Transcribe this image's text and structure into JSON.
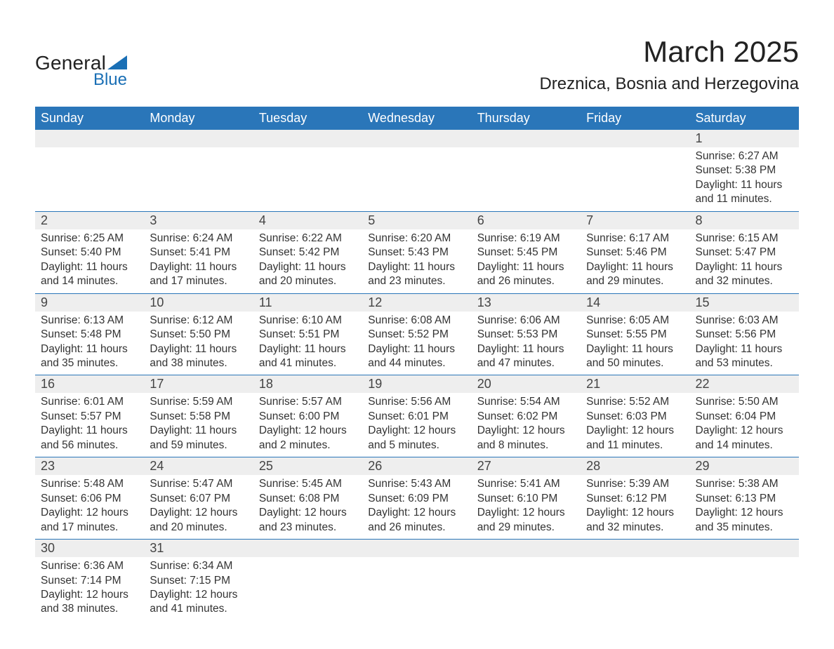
{
  "logo": {
    "text_general": "General",
    "text_blue": "Blue",
    "flag_color": "#1a6fb5"
  },
  "title": "March 2025",
  "location": "Dreznica, Bosnia and Herzegovina",
  "colors": {
    "header_bg": "#2a76b9",
    "header_text": "#ffffff",
    "daynum_bg": "#eeeeee",
    "row_border": "#2a76b9",
    "body_text": "#333333",
    "page_bg": "#ffffff"
  },
  "typography": {
    "title_fontsize": 42,
    "location_fontsize": 24,
    "header_fontsize": 18,
    "daynum_fontsize": 18,
    "detail_fontsize": 15.5,
    "font_family": "Arial"
  },
  "weekdays": [
    "Sunday",
    "Monday",
    "Tuesday",
    "Wednesday",
    "Thursday",
    "Friday",
    "Saturday"
  ],
  "weeks": [
    [
      null,
      null,
      null,
      null,
      null,
      null,
      {
        "n": "1",
        "sunrise": "Sunrise: 6:27 AM",
        "sunset": "Sunset: 5:38 PM",
        "day1": "Daylight: 11 hours",
        "day2": "and 11 minutes."
      }
    ],
    [
      {
        "n": "2",
        "sunrise": "Sunrise: 6:25 AM",
        "sunset": "Sunset: 5:40 PM",
        "day1": "Daylight: 11 hours",
        "day2": "and 14 minutes."
      },
      {
        "n": "3",
        "sunrise": "Sunrise: 6:24 AM",
        "sunset": "Sunset: 5:41 PM",
        "day1": "Daylight: 11 hours",
        "day2": "and 17 minutes."
      },
      {
        "n": "4",
        "sunrise": "Sunrise: 6:22 AM",
        "sunset": "Sunset: 5:42 PM",
        "day1": "Daylight: 11 hours",
        "day2": "and 20 minutes."
      },
      {
        "n": "5",
        "sunrise": "Sunrise: 6:20 AM",
        "sunset": "Sunset: 5:43 PM",
        "day1": "Daylight: 11 hours",
        "day2": "and 23 minutes."
      },
      {
        "n": "6",
        "sunrise": "Sunrise: 6:19 AM",
        "sunset": "Sunset: 5:45 PM",
        "day1": "Daylight: 11 hours",
        "day2": "and 26 minutes."
      },
      {
        "n": "7",
        "sunrise": "Sunrise: 6:17 AM",
        "sunset": "Sunset: 5:46 PM",
        "day1": "Daylight: 11 hours",
        "day2": "and 29 minutes."
      },
      {
        "n": "8",
        "sunrise": "Sunrise: 6:15 AM",
        "sunset": "Sunset: 5:47 PM",
        "day1": "Daylight: 11 hours",
        "day2": "and 32 minutes."
      }
    ],
    [
      {
        "n": "9",
        "sunrise": "Sunrise: 6:13 AM",
        "sunset": "Sunset: 5:48 PM",
        "day1": "Daylight: 11 hours",
        "day2": "and 35 minutes."
      },
      {
        "n": "10",
        "sunrise": "Sunrise: 6:12 AM",
        "sunset": "Sunset: 5:50 PM",
        "day1": "Daylight: 11 hours",
        "day2": "and 38 minutes."
      },
      {
        "n": "11",
        "sunrise": "Sunrise: 6:10 AM",
        "sunset": "Sunset: 5:51 PM",
        "day1": "Daylight: 11 hours",
        "day2": "and 41 minutes."
      },
      {
        "n": "12",
        "sunrise": "Sunrise: 6:08 AM",
        "sunset": "Sunset: 5:52 PM",
        "day1": "Daylight: 11 hours",
        "day2": "and 44 minutes."
      },
      {
        "n": "13",
        "sunrise": "Sunrise: 6:06 AM",
        "sunset": "Sunset: 5:53 PM",
        "day1": "Daylight: 11 hours",
        "day2": "and 47 minutes."
      },
      {
        "n": "14",
        "sunrise": "Sunrise: 6:05 AM",
        "sunset": "Sunset: 5:55 PM",
        "day1": "Daylight: 11 hours",
        "day2": "and 50 minutes."
      },
      {
        "n": "15",
        "sunrise": "Sunrise: 6:03 AM",
        "sunset": "Sunset: 5:56 PM",
        "day1": "Daylight: 11 hours",
        "day2": "and 53 minutes."
      }
    ],
    [
      {
        "n": "16",
        "sunrise": "Sunrise: 6:01 AM",
        "sunset": "Sunset: 5:57 PM",
        "day1": "Daylight: 11 hours",
        "day2": "and 56 minutes."
      },
      {
        "n": "17",
        "sunrise": "Sunrise: 5:59 AM",
        "sunset": "Sunset: 5:58 PM",
        "day1": "Daylight: 11 hours",
        "day2": "and 59 minutes."
      },
      {
        "n": "18",
        "sunrise": "Sunrise: 5:57 AM",
        "sunset": "Sunset: 6:00 PM",
        "day1": "Daylight: 12 hours",
        "day2": "and 2 minutes."
      },
      {
        "n": "19",
        "sunrise": "Sunrise: 5:56 AM",
        "sunset": "Sunset: 6:01 PM",
        "day1": "Daylight: 12 hours",
        "day2": "and 5 minutes."
      },
      {
        "n": "20",
        "sunrise": "Sunrise: 5:54 AM",
        "sunset": "Sunset: 6:02 PM",
        "day1": "Daylight: 12 hours",
        "day2": "and 8 minutes."
      },
      {
        "n": "21",
        "sunrise": "Sunrise: 5:52 AM",
        "sunset": "Sunset: 6:03 PM",
        "day1": "Daylight: 12 hours",
        "day2": "and 11 minutes."
      },
      {
        "n": "22",
        "sunrise": "Sunrise: 5:50 AM",
        "sunset": "Sunset: 6:04 PM",
        "day1": "Daylight: 12 hours",
        "day2": "and 14 minutes."
      }
    ],
    [
      {
        "n": "23",
        "sunrise": "Sunrise: 5:48 AM",
        "sunset": "Sunset: 6:06 PM",
        "day1": "Daylight: 12 hours",
        "day2": "and 17 minutes."
      },
      {
        "n": "24",
        "sunrise": "Sunrise: 5:47 AM",
        "sunset": "Sunset: 6:07 PM",
        "day1": "Daylight: 12 hours",
        "day2": "and 20 minutes."
      },
      {
        "n": "25",
        "sunrise": "Sunrise: 5:45 AM",
        "sunset": "Sunset: 6:08 PM",
        "day1": "Daylight: 12 hours",
        "day2": "and 23 minutes."
      },
      {
        "n": "26",
        "sunrise": "Sunrise: 5:43 AM",
        "sunset": "Sunset: 6:09 PM",
        "day1": "Daylight: 12 hours",
        "day2": "and 26 minutes."
      },
      {
        "n": "27",
        "sunrise": "Sunrise: 5:41 AM",
        "sunset": "Sunset: 6:10 PM",
        "day1": "Daylight: 12 hours",
        "day2": "and 29 minutes."
      },
      {
        "n": "28",
        "sunrise": "Sunrise: 5:39 AM",
        "sunset": "Sunset: 6:12 PM",
        "day1": "Daylight: 12 hours",
        "day2": "and 32 minutes."
      },
      {
        "n": "29",
        "sunrise": "Sunrise: 5:38 AM",
        "sunset": "Sunset: 6:13 PM",
        "day1": "Daylight: 12 hours",
        "day2": "and 35 minutes."
      }
    ],
    [
      {
        "n": "30",
        "sunrise": "Sunrise: 6:36 AM",
        "sunset": "Sunset: 7:14 PM",
        "day1": "Daylight: 12 hours",
        "day2": "and 38 minutes."
      },
      {
        "n": "31",
        "sunrise": "Sunrise: 6:34 AM",
        "sunset": "Sunset: 7:15 PM",
        "day1": "Daylight: 12 hours",
        "day2": "and 41 minutes."
      },
      null,
      null,
      null,
      null,
      null
    ]
  ]
}
